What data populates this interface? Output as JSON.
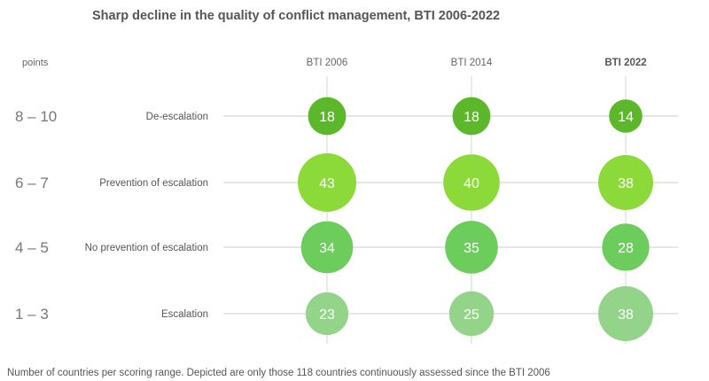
{
  "chart_data": {
    "type": "bubble-grid",
    "title": "Sharp decline in the quality of conflict management, BTI 2006-2022",
    "unit_label": "points",
    "columns": [
      "BTI 2006",
      "BTI 2014",
      "BTI 2022"
    ],
    "highlight_column": "BTI 2022",
    "rows": [
      {
        "range": "8 – 10",
        "category": "De-escalation",
        "values": [
          18,
          18,
          14
        ],
        "color": "#5cb82a"
      },
      {
        "range": "6 – 7",
        "category": "Prevention of escalation",
        "values": [
          43,
          40,
          38
        ],
        "color": "#8cd93a"
      },
      {
        "range": "4 – 5",
        "category": "No prevention of escalation",
        "values": [
          34,
          35,
          28
        ],
        "color": "#6ccc5c"
      },
      {
        "range": "1 – 3",
        "category": "Escalation",
        "values": [
          23,
          25,
          38
        ],
        "color": "#94d48a"
      }
    ],
    "footnote": "Number of countries per scoring range. Depicted are only those 118 countries continuously assessed since the BTI 2006"
  }
}
